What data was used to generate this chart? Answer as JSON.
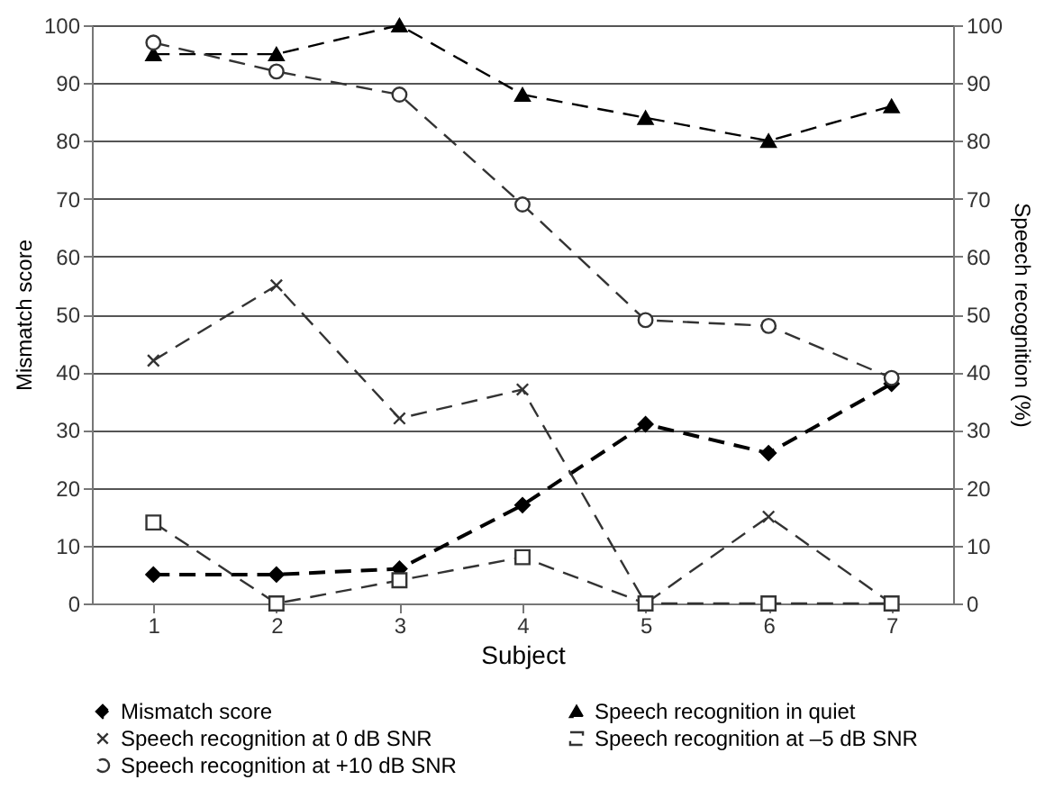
{
  "chart_data": {
    "type": "line",
    "xlabel": "Subject",
    "ylabel": "Mismatch score",
    "y2label": "Speech recognition (%)",
    "categories": [
      "1",
      "2",
      "3",
      "4",
      "5",
      "6",
      "7"
    ],
    "ylim": [
      0,
      100
    ],
    "yticks": [
      0,
      10,
      20,
      30,
      40,
      50,
      60,
      70,
      80,
      90,
      100
    ],
    "y2lim": [
      0,
      100
    ],
    "y2ticks": [
      0,
      10,
      20,
      30,
      40,
      50,
      60,
      70,
      80,
      90,
      100
    ],
    "grid": "y",
    "legend": "bottom",
    "series": [
      {
        "name": "Mismatch score",
        "color": "#000000",
        "marker": "diamond",
        "line_style": "dashed",
        "values": [
          5,
          5,
          6,
          17,
          31,
          26,
          38
        ]
      },
      {
        "name": "Speech recognition in quiet",
        "color": "#000000",
        "marker": "triangle",
        "line_style": "dashed",
        "axis": "y2",
        "values": [
          95,
          95,
          100,
          88,
          84,
          80,
          86
        ]
      },
      {
        "name": "Speech recognition at 0 dB SNR",
        "color": "#333333",
        "marker": "cross",
        "line_style": "dashed",
        "axis": "y2",
        "values": [
          42,
          55,
          32,
          37,
          0,
          15,
          0
        ]
      },
      {
        "name": "Speech recognition at –5 dB SNR",
        "color": "#333333",
        "marker": "square",
        "line_style": "dashed",
        "axis": "y2",
        "values": [
          14,
          0,
          4,
          8,
          0,
          0,
          0
        ]
      },
      {
        "name": "Speech recognition at +10 dB SNR",
        "color": "#333333",
        "marker": "circle",
        "line_style": "dashed",
        "axis": "y2",
        "values": [
          97,
          92,
          88,
          69,
          49,
          48,
          39
        ]
      }
    ]
  }
}
